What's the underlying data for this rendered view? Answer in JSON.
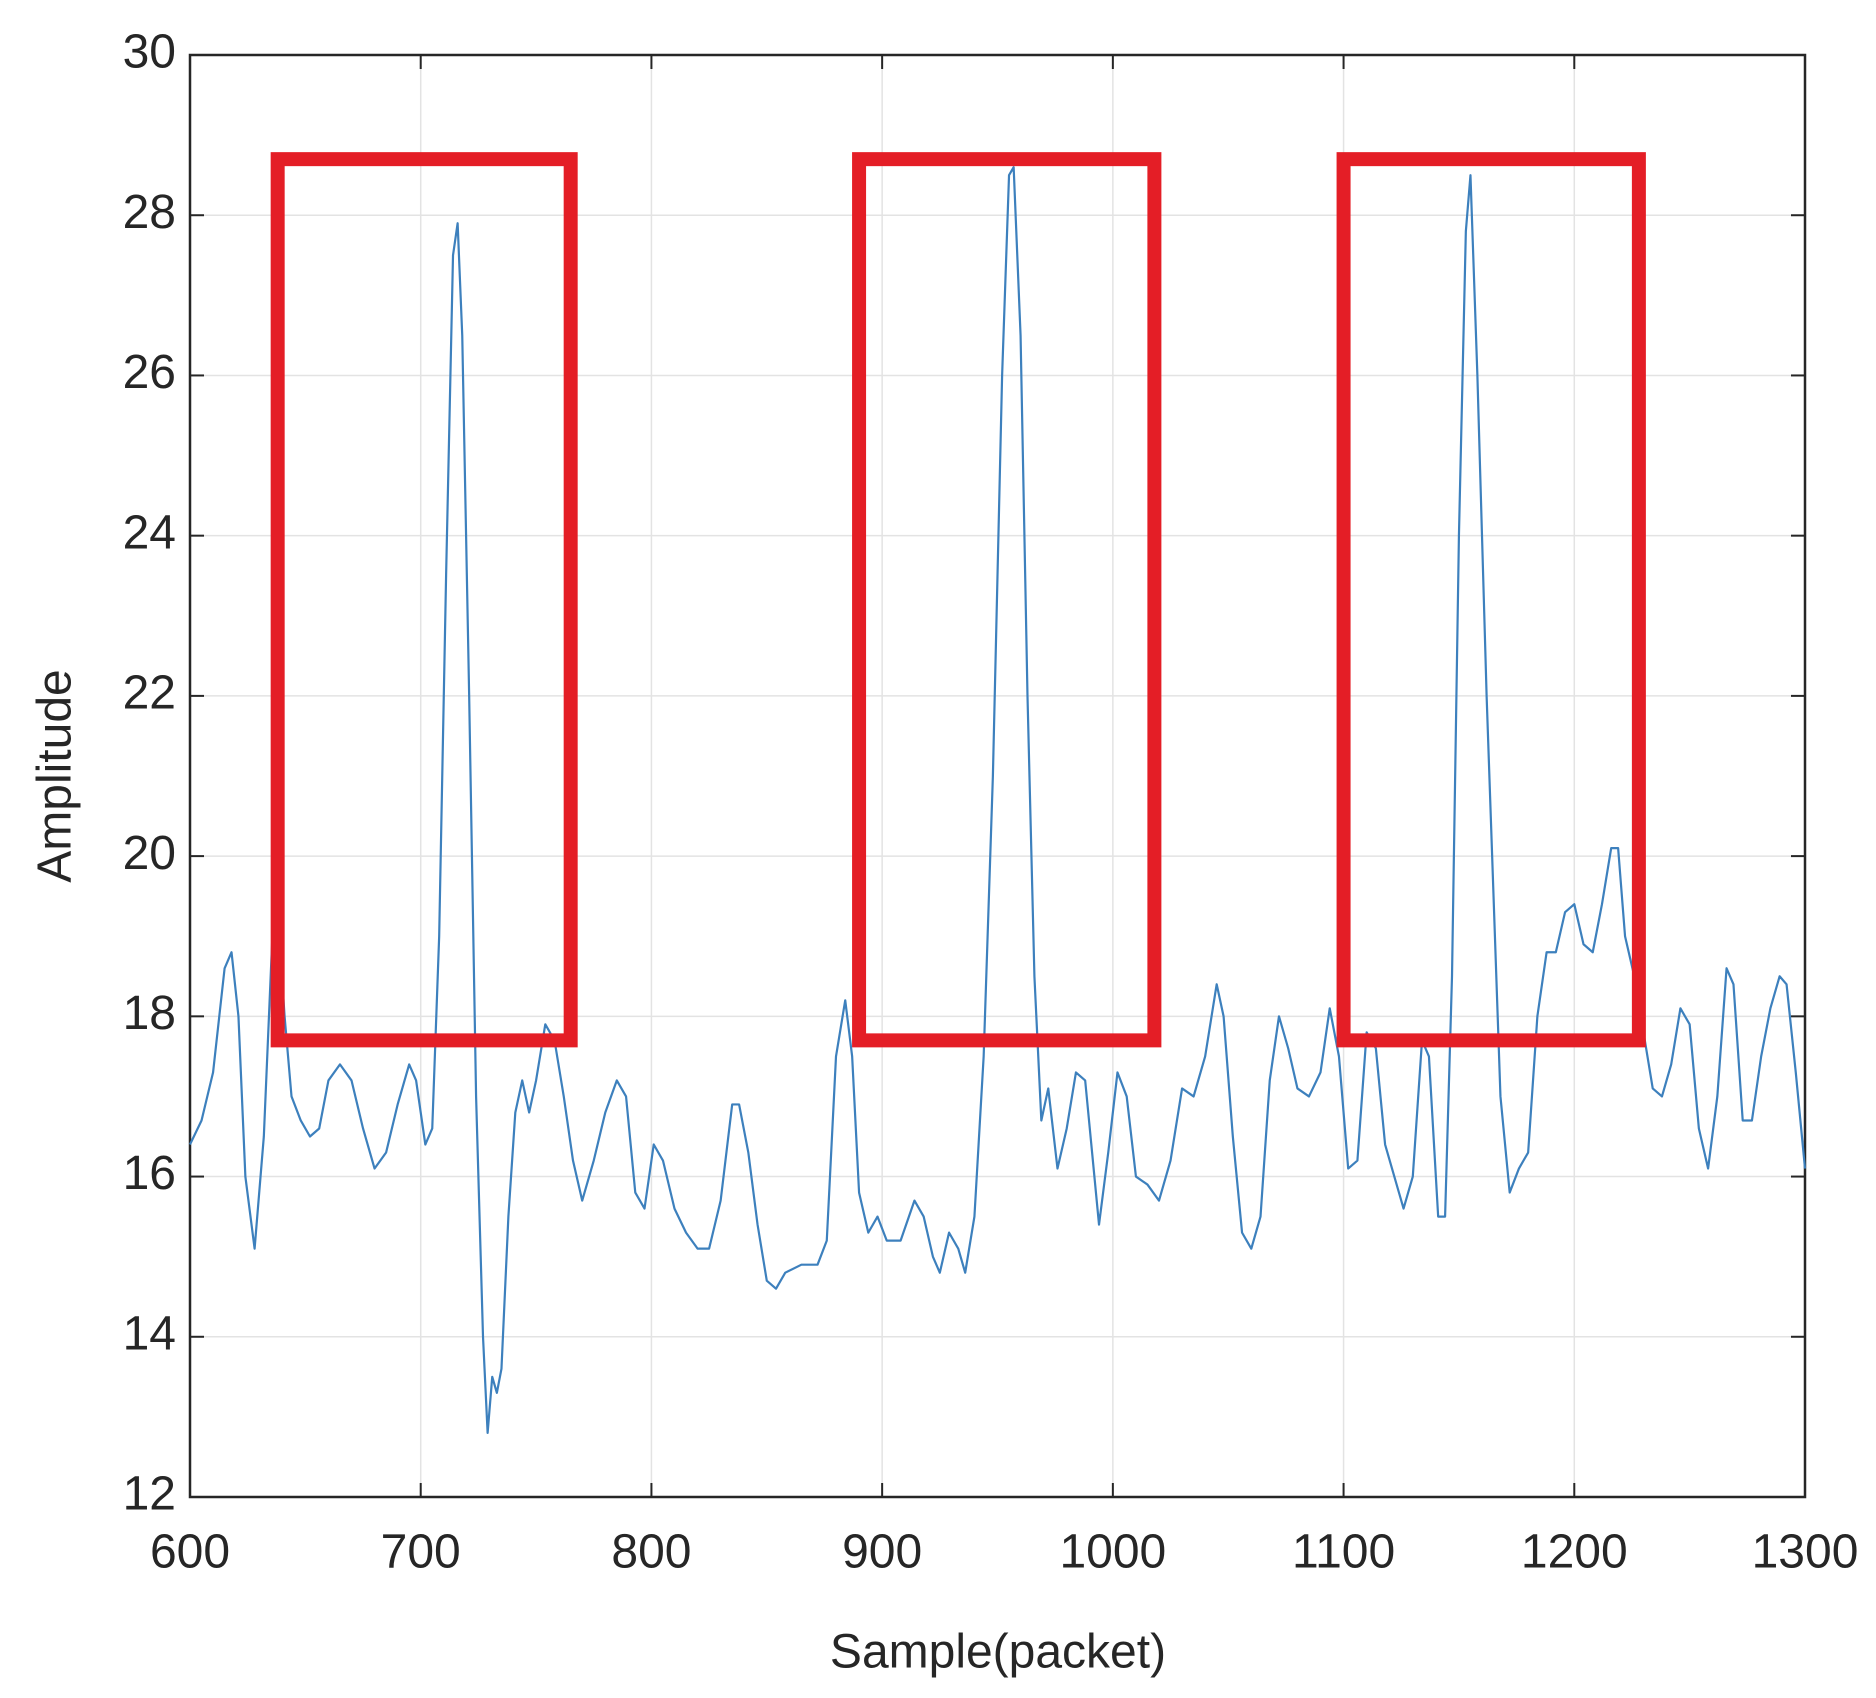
{
  "chart_data": {
    "type": "line",
    "xlabel": "Sample(packet)",
    "ylabel": "Amplitude",
    "xlim": [
      600,
      1300
    ],
    "xticks": [
      600,
      700,
      800,
      900,
      1000,
      1100,
      1200,
      1300
    ],
    "ylim": [
      12,
      30
    ],
    "yticks": [
      12,
      14,
      16,
      18,
      20,
      22,
      24,
      26,
      28,
      30
    ],
    "grid": true,
    "highlight_color": "#e41e26",
    "highlight_boxes": [
      {
        "x": [
          638,
          765
        ],
        "y": [
          17.7,
          28.7
        ]
      },
      {
        "x": [
          890,
          1018
        ],
        "y": [
          17.7,
          28.7
        ]
      },
      {
        "x": [
          1100,
          1228
        ],
        "y": [
          17.7,
          28.7
        ]
      }
    ],
    "series": [
      {
        "color": "#3d80bd",
        "x": [
          600,
          605,
          610,
          615,
          618,
          621,
          624,
          628,
          632,
          636,
          638,
          641,
          644,
          648,
          652,
          656,
          660,
          665,
          670,
          675,
          680,
          685,
          690,
          695,
          698,
          702,
          705,
          708,
          711,
          714,
          716,
          718,
          721,
          724,
          727,
          729,
          731,
          733,
          735,
          738,
          741,
          744,
          747,
          750,
          754,
          758,
          762,
          766,
          770,
          775,
          780,
          785,
          789,
          793,
          797,
          801,
          805,
          810,
          815,
          820,
          825,
          830,
          835,
          838,
          842,
          846,
          850,
          854,
          858,
          865,
          872,
          876,
          880,
          884,
          887,
          890,
          894,
          898,
          902,
          908,
          914,
          918,
          922,
          925,
          929,
          933,
          936,
          940,
          944,
          948,
          952,
          955,
          957,
          960,
          963,
          966,
          969,
          972,
          976,
          980,
          984,
          988,
          991,
          994,
          998,
          1002,
          1006,
          1010,
          1015,
          1020,
          1025,
          1030,
          1035,
          1040,
          1045,
          1048,
          1052,
          1056,
          1060,
          1064,
          1068,
          1072,
          1076,
          1080,
          1085,
          1090,
          1094,
          1098,
          1102,
          1106,
          1110,
          1114,
          1118,
          1122,
          1126,
          1130,
          1134,
          1137,
          1141,
          1144,
          1147,
          1150,
          1153,
          1155,
          1158,
          1162,
          1165,
          1168,
          1172,
          1176,
          1180,
          1184,
          1188,
          1192,
          1196,
          1200,
          1204,
          1208,
          1212,
          1216,
          1219,
          1222,
          1226,
          1230,
          1234,
          1238,
          1242,
          1246,
          1250,
          1254,
          1258,
          1262,
          1266,
          1269,
          1273,
          1277,
          1281,
          1285,
          1289,
          1292,
          1296,
          1300
        ],
        "values": [
          16.4,
          16.7,
          17.3,
          18.6,
          18.8,
          18.0,
          16.0,
          15.1,
          16.5,
          19.2,
          19.3,
          18.0,
          17.0,
          16.7,
          16.5,
          16.6,
          17.2,
          17.4,
          17.2,
          16.6,
          16.1,
          16.3,
          16.9,
          17.4,
          17.2,
          16.4,
          16.6,
          19.0,
          23.5,
          27.5,
          27.9,
          26.5,
          22.0,
          17.0,
          14.0,
          12.8,
          13.5,
          13.3,
          13.6,
          15.5,
          16.8,
          17.2,
          16.8,
          17.2,
          17.9,
          17.7,
          17.0,
          16.2,
          15.7,
          16.2,
          16.8,
          17.2,
          17.0,
          15.8,
          15.6,
          16.4,
          16.2,
          15.6,
          15.3,
          15.1,
          15.1,
          15.7,
          16.9,
          16.9,
          16.3,
          15.4,
          14.7,
          14.6,
          14.8,
          14.9,
          14.9,
          15.2,
          17.5,
          18.2,
          17.5,
          15.8,
          15.3,
          15.5,
          15.2,
          15.2,
          15.7,
          15.5,
          15.0,
          14.8,
          15.3,
          15.1,
          14.8,
          15.5,
          17.5,
          21.0,
          26.0,
          28.5,
          28.6,
          26.5,
          22.0,
          18.5,
          16.7,
          17.1,
          16.1,
          16.6,
          17.3,
          17.2,
          16.3,
          15.4,
          16.3,
          17.3,
          17.0,
          16.0,
          15.9,
          15.7,
          16.2,
          17.1,
          17.0,
          17.5,
          18.4,
          18.0,
          16.5,
          15.3,
          15.1,
          15.5,
          17.2,
          18.0,
          17.6,
          17.1,
          17.0,
          17.3,
          18.1,
          17.5,
          16.1,
          16.2,
          17.8,
          17.6,
          16.4,
          16.0,
          15.6,
          16.0,
          17.7,
          17.5,
          15.5,
          15.5,
          18.5,
          24.0,
          27.8,
          28.5,
          26.0,
          22.0,
          19.5,
          17.0,
          15.8,
          16.1,
          16.3,
          18.0,
          18.8,
          18.8,
          19.3,
          19.4,
          18.9,
          18.8,
          19.4,
          20.1,
          20.1,
          19.0,
          18.5,
          17.8,
          17.1,
          17.0,
          17.4,
          18.1,
          17.9,
          16.6,
          16.1,
          17.0,
          18.6,
          18.4,
          16.7,
          16.7,
          17.5,
          18.1,
          18.5,
          18.4,
          17.3,
          16.1
        ]
      }
    ]
  }
}
